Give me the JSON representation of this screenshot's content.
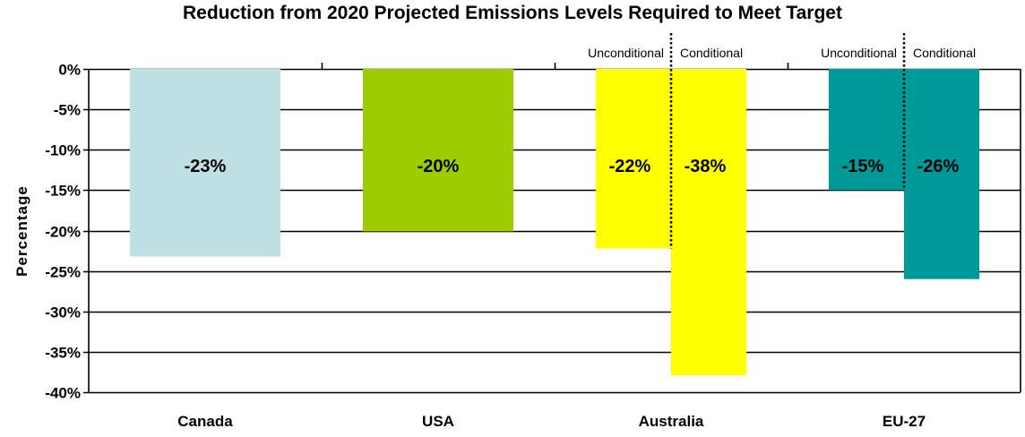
{
  "chart_data": {
    "type": "bar",
    "title": "Reduction from 2020 Projected Emissions Levels Required to Meet Target",
    "ylabel": "Percentage",
    "xlabel": "",
    "ylim": [
      -40,
      0
    ],
    "y_ticks": [
      "0%",
      "-5%",
      "-10%",
      "-15%",
      "-20%",
      "-25%",
      "-30%",
      "-35%",
      "-40%"
    ],
    "grid": true,
    "categories": [
      "Canada",
      "USA",
      "Australia",
      "EU-27"
    ],
    "bars": [
      {
        "category": "Canada",
        "sub": "",
        "value": -23.2,
        "label": "-23%",
        "color": "#bfe0e3"
      },
      {
        "category": "USA",
        "sub": "",
        "value": -20.1,
        "label": "-20%",
        "color": "#9fcc00"
      },
      {
        "category": "Australia",
        "sub": "Unconditional",
        "value": -22.2,
        "label": "-22%",
        "color": "#ffff00"
      },
      {
        "category": "Australia",
        "sub": "Conditional",
        "value": -37.9,
        "label": "-38%",
        "color": "#ffff00"
      },
      {
        "category": "EU-27",
        "sub": "Unconditional",
        "value": -15.0,
        "label": "-15%",
        "color": "#009999"
      },
      {
        "category": "EU-27",
        "sub": "Conditional",
        "value": -26.0,
        "label": "-26%",
        "color": "#009999"
      }
    ],
    "sub_labels": [
      "Unconditional",
      "Conditional",
      "Unconditional",
      "Conditional"
    ]
  }
}
